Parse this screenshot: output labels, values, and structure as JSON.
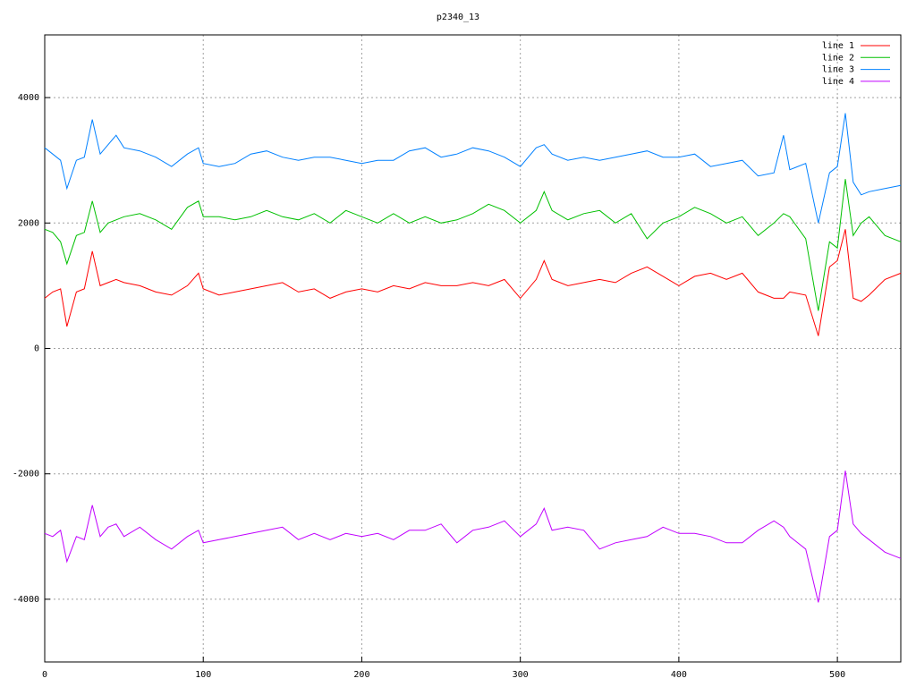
{
  "chart_data": {
    "type": "line",
    "title": "p2340_13",
    "x": [
      0,
      5,
      10,
      14,
      20,
      25,
      30,
      35,
      40,
      45,
      50,
      60,
      70,
      80,
      90,
      97,
      100,
      110,
      120,
      130,
      140,
      150,
      160,
      170,
      180,
      190,
      200,
      210,
      220,
      230,
      240,
      250,
      260,
      270,
      280,
      290,
      300,
      310,
      315,
      320,
      330,
      340,
      350,
      360,
      370,
      380,
      390,
      400,
      410,
      420,
      430,
      440,
      450,
      460,
      466,
      470,
      480,
      488,
      495,
      500,
      505,
      510,
      515,
      520,
      530,
      540
    ],
    "series": [
      {
        "name": "line 1",
        "color": "#ff0000",
        "values": [
          800,
          900,
          950,
          350,
          900,
          950,
          1550,
          1000,
          1050,
          1100,
          1050,
          1000,
          900,
          850,
          1000,
          1200,
          950,
          850,
          900,
          950,
          1000,
          1050,
          900,
          950,
          800,
          900,
          950,
          900,
          1000,
          950,
          1050,
          1000,
          1000,
          1050,
          1000,
          1100,
          800,
          1100,
          1400,
          1100,
          1000,
          1050,
          1100,
          1050,
          1200,
          1300,
          1150,
          1000,
          1150,
          1200,
          1100,
          1200,
          900,
          800,
          800,
          900,
          850,
          200,
          1300,
          1400,
          1900,
          800,
          750,
          850,
          1100,
          1200
        ]
      },
      {
        "name": "line 2",
        "color": "#00c000",
        "values": [
          1900,
          1850,
          1700,
          1350,
          1800,
          1850,
          2350,
          1850,
          2000,
          2050,
          2100,
          2150,
          2050,
          1900,
          2250,
          2350,
          2100,
          2100,
          2050,
          2100,
          2200,
          2100,
          2050,
          2150,
          2000,
          2200,
          2100,
          2000,
          2150,
          2000,
          2100,
          2000,
          2050,
          2150,
          2300,
          2200,
          2000,
          2200,
          2500,
          2200,
          2050,
          2150,
          2200,
          2000,
          2150,
          1750,
          2000,
          2100,
          2250,
          2150,
          2000,
          2100,
          1800,
          2000,
          2150,
          2100,
          1750,
          600,
          1700,
          1600,
          2700,
          1800,
          2000,
          2100,
          1800,
          1700
        ]
      },
      {
        "name": "line 3",
        "color": "#0080ff",
        "values": [
          3200,
          3100,
          3000,
          2550,
          3000,
          3050,
          3650,
          3100,
          3250,
          3400,
          3200,
          3150,
          3050,
          2900,
          3100,
          3200,
          2950,
          2900,
          2950,
          3100,
          3150,
          3050,
          3000,
          3050,
          3050,
          3000,
          2950,
          3000,
          3000,
          3150,
          3200,
          3050,
          3100,
          3200,
          3150,
          3050,
          2900,
          3200,
          3250,
          3100,
          3000,
          3050,
          3000,
          3050,
          3100,
          3150,
          3050,
          3050,
          3100,
          2900,
          2950,
          3000,
          2750,
          2800,
          3400,
          2850,
          2950,
          2000,
          2800,
          2900,
          3750,
          2650,
          2450,
          2500,
          2550,
          2600
        ]
      },
      {
        "name": "line 4",
        "color": "#c000ff",
        "values": [
          -2950,
          -3000,
          -2900,
          -3400,
          -3000,
          -3050,
          -2500,
          -3000,
          -2850,
          -2800,
          -3000,
          -2850,
          -3050,
          -3200,
          -3000,
          -2900,
          -3100,
          -3050,
          -3000,
          -2950,
          -2900,
          -2850,
          -3050,
          -2950,
          -3050,
          -2950,
          -3000,
          -2950,
          -3050,
          -2900,
          -2900,
          -2800,
          -3100,
          -2900,
          -2850,
          -2750,
          -3000,
          -2800,
          -2550,
          -2900,
          -2850,
          -2900,
          -3200,
          -3100,
          -3050,
          -3000,
          -2850,
          -2950,
          -2950,
          -3000,
          -3100,
          -3100,
          -2900,
          -2750,
          -2850,
          -3000,
          -3200,
          -4050,
          -3000,
          -2900,
          -1950,
          -2800,
          -2950,
          -3050,
          -3250,
          -3350
        ]
      }
    ],
    "xlim": [
      0,
      540
    ],
    "ylim": [
      -5000,
      5000
    ],
    "xticks": [
      0,
      100,
      200,
      300,
      400,
      500
    ],
    "yticks": [
      -4000,
      -2000,
      0,
      2000,
      4000
    ],
    "grid": true,
    "legend": "top-right"
  }
}
